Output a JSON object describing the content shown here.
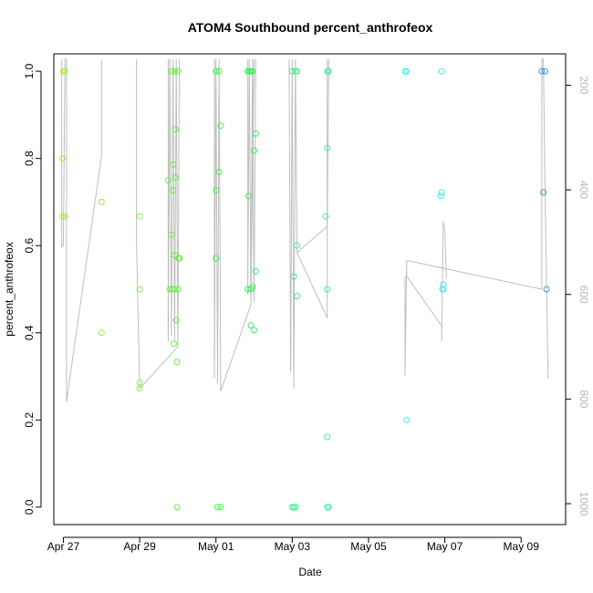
{
  "chart_data": {
    "type": "scatter",
    "title": "ATOM4 Southbound percent_anthrofeox",
    "xlabel": "Date",
    "ylabel": "percent_anthrofeox",
    "xlim": [
      "2023-04-26T18:00",
      "2023-05-10T04:00"
    ],
    "ylim": [
      -0.04,
      1.04
    ],
    "y2lim": [
      1040,
      140
    ],
    "x_ticks": [
      {
        "label": "Apr 27",
        "date": "2023-04-27"
      },
      {
        "label": "Apr 29",
        "date": "2023-04-29"
      },
      {
        "label": "May 01",
        "date": "2023-05-01"
      },
      {
        "label": "May 03",
        "date": "2023-05-03"
      },
      {
        "label": "May 05",
        "date": "2023-05-05"
      },
      {
        "label": "May 07",
        "date": "2023-05-07"
      },
      {
        "label": "May 09",
        "date": "2023-05-09"
      }
    ],
    "y_ticks": [
      "0.0",
      "0.2",
      "0.4",
      "0.6",
      "0.8",
      "1.0"
    ],
    "y2_ticks": [
      "200",
      "400",
      "600",
      "800",
      "1000"
    ],
    "grid": false,
    "series": [
      {
        "marker": "open-circle",
        "points": [
          {
            "x": "2023-04-27T00:00",
            "y": 1.0,
            "color": "#a6f03c"
          },
          {
            "x": "2023-04-27T01:00",
            "y": 1.0,
            "color": "#a6f03c"
          },
          {
            "x": "2023-04-26T23:30",
            "y": 0.8,
            "color": "#a6f03c"
          },
          {
            "x": "2023-04-26T23:30",
            "y": 0.667,
            "color": "#a6f03c"
          },
          {
            "x": "2023-04-27T01:00",
            "y": 0.667,
            "color": "#a6f03c"
          },
          {
            "x": "2023-04-28T00:00",
            "y": 0.7,
            "color": "#9af03c"
          },
          {
            "x": "2023-04-28T00:00",
            "y": 0.4,
            "color": "#9af03c"
          },
          {
            "x": "2023-04-29T00:00",
            "y": 0.667,
            "color": "#8ef03c"
          },
          {
            "x": "2023-04-29T00:00",
            "y": 0.5,
            "color": "#8ef03c"
          },
          {
            "x": "2023-04-29T00:00",
            "y": 0.286,
            "color": "#8ef03c"
          },
          {
            "x": "2023-04-29T00:00",
            "y": 0.273,
            "color": "#8ef03c"
          },
          {
            "x": "2023-04-29T20:00",
            "y": 1.0,
            "color": "#6af03c"
          },
          {
            "x": "2023-04-29T22:00",
            "y": 1.0,
            "color": "#6af03c"
          },
          {
            "x": "2023-04-30T00:00",
            "y": 1.0,
            "color": "#62f03c"
          },
          {
            "x": "2023-04-29T21:00",
            "y": 0.786,
            "color": "#6af03c"
          },
          {
            "x": "2023-04-29T18:00",
            "y": 0.75,
            "color": "#6af03c"
          },
          {
            "x": "2023-04-29T21:00",
            "y": 0.727,
            "color": "#6af03c"
          },
          {
            "x": "2023-04-29T22:30",
            "y": 0.867,
            "color": "#62f03c"
          },
          {
            "x": "2023-04-29T22:30",
            "y": 0.756,
            "color": "#62f03c"
          },
          {
            "x": "2023-04-29T20:00",
            "y": 0.625,
            "color": "#6af03c"
          },
          {
            "x": "2023-04-29T22:00",
            "y": 0.578,
            "color": "#62f03c"
          },
          {
            "x": "2023-04-30T00:30",
            "y": 0.571,
            "color": "#5af03c"
          },
          {
            "x": "2023-04-30T01:00",
            "y": 0.571,
            "color": "#5af03c"
          },
          {
            "x": "2023-04-29T19:00",
            "y": 0.5,
            "color": "#6af03c"
          },
          {
            "x": "2023-04-29T20:30",
            "y": 0.5,
            "color": "#6af03c"
          },
          {
            "x": "2023-04-29T21:30",
            "y": 0.5,
            "color": "#6af03c"
          },
          {
            "x": "2023-04-30T00:00",
            "y": 0.5,
            "color": "#5af03c"
          },
          {
            "x": "2023-04-29T23:00",
            "y": 0.429,
            "color": "#62f03c"
          },
          {
            "x": "2023-04-29T21:30",
            "y": 0.375,
            "color": "#6af03c"
          },
          {
            "x": "2023-04-29T23:30",
            "y": 0.333,
            "color": "#62f03c"
          },
          {
            "x": "2023-04-29T23:30",
            "y": 0.0,
            "color": "#5af03c"
          },
          {
            "x": "2023-05-01T00:00",
            "y": 1.0,
            "color": "#4cf04c"
          },
          {
            "x": "2023-05-01T02:00",
            "y": 1.0,
            "color": "#4cf04c"
          },
          {
            "x": "2023-05-01T03:00",
            "y": 0.875,
            "color": "#4cf04c"
          },
          {
            "x": "2023-05-01T02:00",
            "y": 0.769,
            "color": "#4cf04c"
          },
          {
            "x": "2023-05-01T00:00",
            "y": 0.727,
            "color": "#4cf04c"
          },
          {
            "x": "2023-05-01T00:00",
            "y": 0.571,
            "color": "#4cf04c"
          },
          {
            "x": "2023-05-01T01:00",
            "y": 0.0,
            "color": "#4cf04c"
          },
          {
            "x": "2023-05-01T03:00",
            "y": 0.0,
            "color": "#4cf04c"
          },
          {
            "x": "2023-05-01T20:00",
            "y": 1.0,
            "color": "#3cf05a"
          },
          {
            "x": "2023-05-01T21:00",
            "y": 1.0,
            "color": "#3cf05a"
          },
          {
            "x": "2023-05-01T22:00",
            "y": 1.0,
            "color": "#3cf05a"
          },
          {
            "x": "2023-05-01T23:00",
            "y": 1.0,
            "color": "#3cf05a"
          },
          {
            "x": "2023-05-02T01:00",
            "y": 0.857,
            "color": "#3cf060"
          },
          {
            "x": "2023-05-02T00:00",
            "y": 0.818,
            "color": "#3cf060"
          },
          {
            "x": "2023-05-01T20:30",
            "y": 0.714,
            "color": "#3cf05a"
          },
          {
            "x": "2023-05-02T01:00",
            "y": 0.541,
            "color": "#3cf060"
          },
          {
            "x": "2023-05-01T20:00",
            "y": 0.5,
            "color": "#3cf05a"
          },
          {
            "x": "2023-05-01T22:00",
            "y": 0.5,
            "color": "#3cf05a"
          },
          {
            "x": "2023-05-01T23:00",
            "y": 0.505,
            "color": "#3cf05a"
          },
          {
            "x": "2023-05-01T22:00",
            "y": 0.417,
            "color": "#3cf05a"
          },
          {
            "x": "2023-05-02T00:00",
            "y": 0.406,
            "color": "#3cf060"
          },
          {
            "x": "2023-05-03T00:00",
            "y": 1.0,
            "color": "#3cf08c"
          },
          {
            "x": "2023-05-03T02:00",
            "y": 1.0,
            "color": "#3cf08c"
          },
          {
            "x": "2023-05-03T03:00",
            "y": 1.0,
            "color": "#3cf08c"
          },
          {
            "x": "2023-05-03T03:00",
            "y": 0.6,
            "color": "#3cf08c"
          },
          {
            "x": "2023-05-03T01:00",
            "y": 0.529,
            "color": "#3cf08c"
          },
          {
            "x": "2023-05-03T03:00",
            "y": 0.484,
            "color": "#3cf08c"
          },
          {
            "x": "2023-05-03T00:00",
            "y": 0.0,
            "color": "#3cf08c"
          },
          {
            "x": "2023-05-03T01:00",
            "y": 0.0,
            "color": "#3cf08c"
          },
          {
            "x": "2023-05-03T02:00",
            "y": 0.0,
            "color": "#3cf08c"
          },
          {
            "x": "2023-05-03T22:00",
            "y": 1.0,
            "color": "#3cf0a0"
          },
          {
            "x": "2023-05-03T23:00",
            "y": 1.0,
            "color": "#3cf0a0"
          },
          {
            "x": "2023-05-03T22:00",
            "y": 0.824,
            "color": "#3cf0a0"
          },
          {
            "x": "2023-05-03T21:00",
            "y": 0.667,
            "color": "#3cf0a0"
          },
          {
            "x": "2023-05-03T22:00",
            "y": 0.5,
            "color": "#3cf0a0"
          },
          {
            "x": "2023-05-03T22:00",
            "y": 0.161,
            "color": "#3cf0a0"
          },
          {
            "x": "2023-05-03T22:00",
            "y": 0.0,
            "color": "#3cf0a0"
          },
          {
            "x": "2023-05-03T23:00",
            "y": 0.0,
            "color": "#3cf0a0"
          },
          {
            "x": "2023-05-05T23:00",
            "y": 1.0,
            "color": "#3cf0e6"
          },
          {
            "x": "2023-05-06T00:00",
            "y": 1.0,
            "color": "#3cf0e6"
          },
          {
            "x": "2023-05-06T00:00",
            "y": 0.2,
            "color": "#3cf0e6"
          },
          {
            "x": "2023-05-06T22:00",
            "y": 1.0,
            "color": "#3ce6f0"
          },
          {
            "x": "2023-05-06T22:00",
            "y": 0.722,
            "color": "#3ce6f0"
          },
          {
            "x": "2023-05-06T21:30",
            "y": 0.714,
            "color": "#3ce6f0"
          },
          {
            "x": "2023-05-06T23:00",
            "y": 0.511,
            "color": "#3ce6f0"
          },
          {
            "x": "2023-05-06T22:30",
            "y": 0.5,
            "color": "#3ce6f0"
          },
          {
            "x": "2023-05-06T23:00",
            "y": 0.5,
            "color": "#3ce6f0"
          },
          {
            "x": "2023-05-09T13:00",
            "y": 1.0,
            "color": "#3c9ad0"
          },
          {
            "x": "2023-05-09T15:00",
            "y": 1.0,
            "color": "#3c9ad0"
          },
          {
            "x": "2023-05-09T14:00",
            "y": 0.722,
            "color": "#3c9ad0"
          },
          {
            "x": "2023-05-09T16:00",
            "y": 0.5,
            "color": "#3c9ad0"
          }
        ]
      }
    ],
    "secondary_line": {
      "color": "#bebebe",
      "axis": "right",
      "segments": [
        [
          [
            "2023-04-26T23:00",
            150
          ],
          [
            "2023-04-26T23:00",
            510
          ],
          [
            "2023-04-27T00:00",
            505
          ],
          [
            "2023-04-27T01:00",
            150
          ],
          [
            "2023-04-27T02:00",
            150
          ],
          [
            "2023-04-27T02:00",
            805
          ],
          [
            "2023-04-28T00:00",
            335
          ],
          [
            "2023-04-28T00:00",
            150
          ]
        ],
        [
          [
            "2023-04-28T22:00",
            150
          ],
          [
            "2023-04-28T22:00",
            495
          ],
          [
            "2023-04-29T00:00",
            780
          ],
          [
            "2023-04-30T00:00",
            700
          ],
          [
            "2023-04-30T01:00",
            150
          ]
        ],
        [
          [
            "2023-04-29T18:00",
            150
          ],
          [
            "2023-04-29T18:00",
            690
          ],
          [
            "2023-04-29T19:00",
            150
          ],
          [
            "2023-04-29T20:00",
            680
          ],
          [
            "2023-04-29T21:00",
            150
          ],
          [
            "2023-04-29T22:00",
            690
          ],
          [
            "2023-04-29T23:00",
            150
          ],
          [
            "2023-04-30T00:00",
            700
          ]
        ],
        [
          [
            "2023-04-30T23:00",
            150
          ],
          [
            "2023-04-30T23:00",
            760
          ],
          [
            "2023-05-01T00:00",
            150
          ],
          [
            "2023-05-01T01:00",
            770
          ],
          [
            "2023-05-01T02:00",
            150
          ],
          [
            "2023-05-01T03:00",
            780
          ],
          [
            "2023-05-01T03:00",
            785
          ],
          [
            "2023-05-01T22:00",
            620
          ],
          [
            "2023-05-02T00:00",
            150
          ]
        ],
        [
          [
            "2023-05-01T20:00",
            150
          ],
          [
            "2023-05-01T20:00",
            600
          ],
          [
            "2023-05-01T21:00",
            150
          ],
          [
            "2023-05-01T22:00",
            610
          ],
          [
            "2023-05-01T23:00",
            150
          ],
          [
            "2023-05-02T00:00",
            615
          ],
          [
            "2023-05-02T01:00",
            150
          ]
        ],
        [
          [
            "2023-05-02T22:00",
            150
          ],
          [
            "2023-05-02T23:00",
            750
          ],
          [
            "2023-05-03T00:00",
            150
          ],
          [
            "2023-05-03T01:00",
            780
          ],
          [
            "2023-05-03T02:00",
            150
          ],
          [
            "2023-05-03T03:00",
            520
          ],
          [
            "2023-05-03T22:00",
            470
          ],
          [
            "2023-05-03T23:00",
            150
          ]
        ],
        [
          [
            "2023-05-03T03:00",
            520
          ],
          [
            "2023-05-03T22:00",
            645
          ],
          [
            "2023-05-03T22:00",
            150
          ]
        ],
        [
          [
            "2023-05-05T23:00",
            565
          ],
          [
            "2023-05-05T23:00",
            755
          ],
          [
            "2023-05-06T00:00",
            535
          ],
          [
            "2023-05-06T00:00",
            565
          ],
          [
            "2023-05-06T22:00",
            660
          ],
          [
            "2023-05-06T22:00",
            690
          ],
          [
            "2023-05-06T23:00",
            460
          ],
          [
            "2023-05-07T00:00",
            480
          ],
          [
            "2023-05-07T01:00",
            570
          ]
        ],
        [
          [
            "2023-05-06T00:00",
            535
          ],
          [
            "2023-05-09T13:00",
            590
          ],
          [
            "2023-05-09T13:00",
            150
          ],
          [
            "2023-05-09T14:00",
            150
          ],
          [
            "2023-05-09T15:00",
            400
          ],
          [
            "2023-05-09T17:00",
            760
          ]
        ]
      ]
    }
  }
}
